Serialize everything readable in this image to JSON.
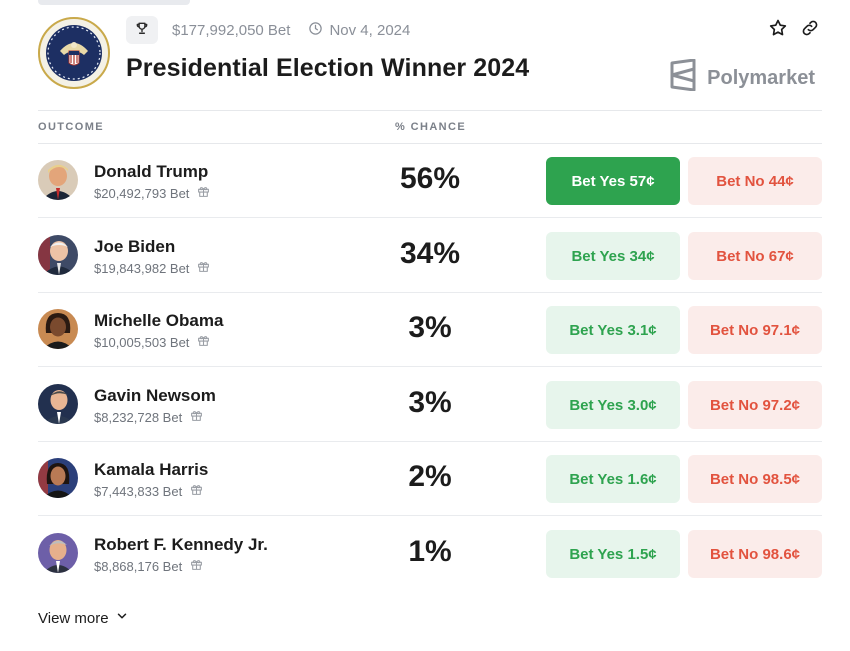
{
  "market": {
    "volume": "$177,992,050 Bet",
    "date": "Nov 4, 2024",
    "title": "Presidential Election Winner 2024",
    "brand": "Polymarket"
  },
  "table": {
    "col_outcome": "OUTCOME",
    "col_chance": "% CHANCE"
  },
  "rows": [
    {
      "name": "Donald Trump",
      "volume": "$20,492,793 Bet",
      "chance": "56%",
      "yes": "Bet Yes 57¢",
      "no": "Bet No 44¢"
    },
    {
      "name": "Joe Biden",
      "volume": "$19,843,982 Bet",
      "chance": "34%",
      "yes": "Bet Yes 34¢",
      "no": "Bet No 67¢"
    },
    {
      "name": "Michelle Obama",
      "volume": "$10,005,503 Bet",
      "chance": "3%",
      "yes": "Bet Yes 3.1¢",
      "no": "Bet No 97.1¢"
    },
    {
      "name": "Gavin Newsom",
      "volume": "$8,232,728 Bet",
      "chance": "3%",
      "yes": "Bet Yes 3.0¢",
      "no": "Bet No 97.2¢"
    },
    {
      "name": "Kamala Harris",
      "volume": "$7,443,833 Bet",
      "chance": "2%",
      "yes": "Bet Yes 1.6¢",
      "no": "Bet No 98.5¢"
    },
    {
      "name": "Robert F. Kennedy Jr.",
      "volume": "$8,868,176 Bet",
      "chance": "1%",
      "yes": "Bet Yes 1.5¢",
      "no": "Bet No 98.6¢"
    }
  ],
  "footer": {
    "view_more": "View more"
  },
  "colors": {
    "yes_green": "#2ea34f",
    "yes_soft_bg": "#e7f5ec",
    "no_red": "#e2533f",
    "no_soft_bg": "#fbecea"
  },
  "icons": {
    "category": "trophy-icon",
    "date": "clock-icon",
    "favorite": "star-icon",
    "share": "link-icon",
    "gift": "gift-icon",
    "expand": "chevron-down-icon"
  }
}
